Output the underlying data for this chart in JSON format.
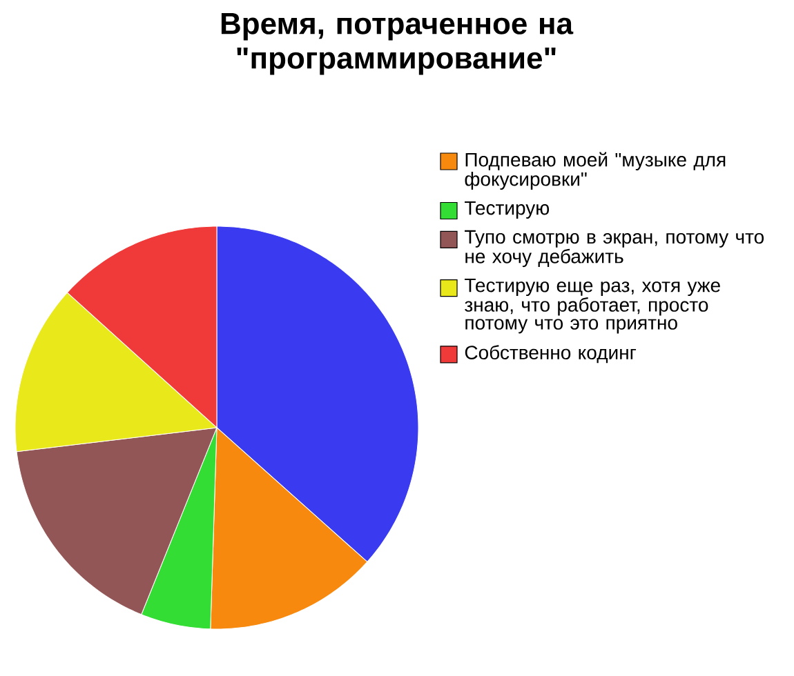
{
  "chart_data": {
    "type": "pie",
    "title": "Время, потраченное на \"программирование\"",
    "categories": [
      null,
      "Подпеваю моей \"музыке для фокусировки\"",
      "Тестирую",
      "Тупо смотрю в экран, потому что не хочу дебажить",
      "Тестирую еще раз, хотя уже знаю, что работает, просто потому что это приятно",
      "Собственно кодинг"
    ],
    "values": [
      36.6,
      13.9,
      5.6,
      17,
      13.6,
      13.3
    ],
    "colors": [
      "#3a3af0",
      "#f78a0e",
      "#33dd33",
      "#935656",
      "#e8e81a",
      "#f03a3a"
    ],
    "legend": "right"
  }
}
